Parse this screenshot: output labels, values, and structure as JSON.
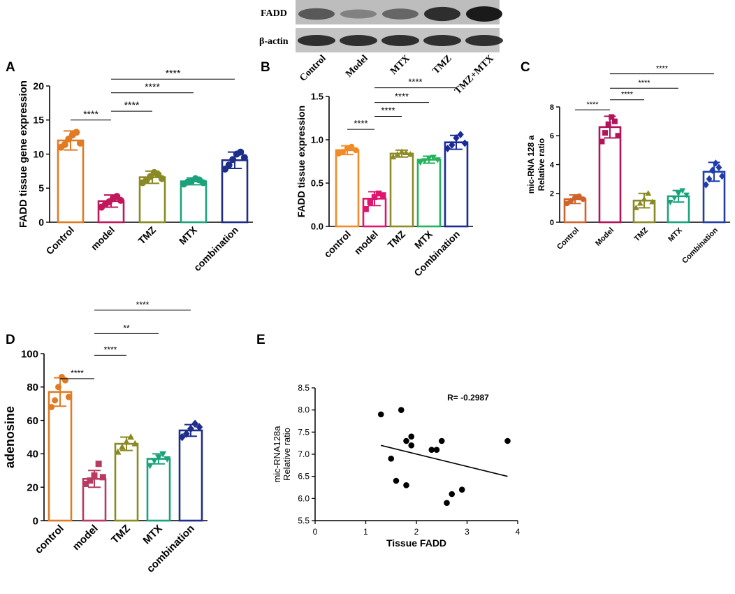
{
  "panel_letters": [
    "A",
    "B",
    "C",
    "D",
    "E"
  ],
  "blot": {
    "rows": [
      "FADD",
      "β-actin"
    ],
    "lanes": [
      "Control",
      "Model",
      "MTX",
      "TMZ",
      "TMZ+MTX"
    ],
    "fadd_intensity": [
      0.55,
      0.25,
      0.45,
      0.85,
      1.0
    ],
    "actin_intensity": [
      0.9,
      0.9,
      0.9,
      0.9,
      0.9
    ]
  },
  "chart_data": [
    {
      "panel": "A",
      "type": "bar",
      "ylabel": "FADD tissue gene expression",
      "xlabel": "",
      "categories": [
        "Control",
        "model",
        "TMZ",
        "MTX",
        "combination"
      ],
      "values": [
        12.0,
        3.1,
        6.6,
        6.0,
        9.1
      ],
      "errors": [
        1.4,
        0.9,
        0.9,
        0.5,
        1.2
      ],
      "points": [
        [
          11.0,
          11.4,
          12.2,
          12.8,
          13.2,
          11.6
        ],
        [
          2.2,
          2.6,
          3.0,
          3.5,
          3.8,
          3.2
        ],
        [
          5.8,
          6.2,
          6.7,
          7.3,
          7.0,
          6.4
        ],
        [
          5.6,
          5.9,
          6.1,
          6.4,
          6.2,
          5.8
        ],
        [
          7.8,
          8.4,
          9.2,
          10.0,
          10.3,
          9.5
        ]
      ],
      "colors": [
        "#e07b24",
        "#c2185b",
        "#8a8a24",
        "#1aa37a",
        "#1f2d8a"
      ],
      "marker": "circle",
      "ylim": [
        0,
        20
      ],
      "yticks": [
        0,
        5,
        10,
        15,
        20
      ],
      "ytick_labels": [
        "0",
        "5",
        "10",
        "15",
        "20"
      ],
      "comparisons": [
        {
          "from": 0,
          "to": 1,
          "y": 15.0,
          "label": "****"
        },
        {
          "from": 1,
          "to": 2,
          "y": 16.3,
          "label": "****"
        },
        {
          "from": 1,
          "to": 3,
          "y": 19.0,
          "label": "****"
        },
        {
          "from": 1,
          "to": 4,
          "y": 21.0,
          "label": "****"
        }
      ]
    },
    {
      "panel": "B",
      "type": "bar",
      "ylabel": "FADD tissue expression",
      "xlabel": "",
      "categories": [
        "control",
        "model",
        "TMZ",
        "MTX",
        "Combination"
      ],
      "values": [
        0.88,
        0.32,
        0.84,
        0.77,
        0.97
      ],
      "errors": [
        0.05,
        0.08,
        0.04,
        0.04,
        0.08
      ],
      "points": [
        [
          0.84,
          0.86,
          0.9,
          0.92,
          0.88
        ],
        [
          0.2,
          0.28,
          0.34,
          0.38,
          0.36
        ],
        [
          0.8,
          0.83,
          0.86,
          0.85,
          0.83
        ],
        [
          0.74,
          0.76,
          0.79,
          0.8,
          0.77
        ],
        [
          0.9,
          0.94,
          1.02,
          1.06,
          0.96
        ]
      ],
      "colors": [
        "#f28a26",
        "#e0156e",
        "#8e8c26",
        "#23b35c",
        "#1a2a96"
      ],
      "marker": "mixed",
      "ylim": [
        0,
        1.5
      ],
      "yticks": [
        0,
        0.5,
        1.0,
        1.5
      ],
      "ytick_labels": [
        "0.0",
        "0.5",
        "1.0",
        "1.5"
      ],
      "comparisons": [
        {
          "from": 0,
          "to": 1,
          "y": 1.12,
          "label": "****"
        },
        {
          "from": 1,
          "to": 2,
          "y": 1.27,
          "label": "****"
        },
        {
          "from": 1,
          "to": 3,
          "y": 1.43,
          "label": "****"
        },
        {
          "from": 1,
          "to": 4,
          "y": 1.6,
          "label": "****"
        }
      ]
    },
    {
      "panel": "C",
      "type": "bar",
      "ylabel": "mic-RNA 128 a Relative ratio",
      "xlabel": "",
      "categories": [
        "Control",
        "Model",
        "TMZ",
        "MTX",
        "Combination"
      ],
      "values": [
        1.6,
        6.6,
        1.5,
        1.8,
        3.5
      ],
      "errors": [
        0.3,
        0.75,
        0.5,
        0.4,
        0.65
      ],
      "points": [
        [
          1.3,
          1.5,
          1.7,
          1.8,
          1.6
        ],
        [
          5.6,
          6.2,
          6.8,
          7.3,
          7.0,
          6.0
        ],
        [
          1.0,
          1.3,
          1.6,
          2.0,
          1.4
        ],
        [
          1.4,
          1.7,
          2.0,
          2.2,
          1.9
        ],
        [
          2.6,
          3.0,
          3.6,
          4.1,
          3.8,
          3.2
        ]
      ],
      "colors": [
        "#d0632a",
        "#b3135a",
        "#8a8a24",
        "#1aa37a",
        "#1f3ca8"
      ],
      "marker": "mixed",
      "ylim": [
        0,
        8
      ],
      "yticks": [
        0,
        2,
        4,
        6,
        8
      ],
      "ytick_labels": [
        "0",
        "2",
        "4",
        "6",
        "8"
      ],
      "comparisons": [
        {
          "from": 0,
          "to": 1,
          "y": 7.8,
          "label": "****"
        },
        {
          "from": 1,
          "to": 2,
          "y": 8.5,
          "label": "****"
        },
        {
          "from": 1,
          "to": 3,
          "y": 9.3,
          "label": "****"
        },
        {
          "from": 1,
          "to": 4,
          "y": 10.3,
          "label": "****"
        }
      ]
    },
    {
      "panel": "D",
      "type": "bar",
      "ylabel": "adenosine",
      "xlabel": "",
      "categories": [
        "control",
        "model",
        "TMZ",
        "MTX",
        "combination"
      ],
      "values": [
        77,
        25,
        46,
        37,
        54
      ],
      "errors": [
        8.5,
        5.0,
        4.0,
        3.0,
        3.5
      ],
      "points": [
        [
          68,
          72,
          80,
          86,
          84,
          74
        ],
        [
          22,
          24,
          27,
          34,
          26
        ],
        [
          41,
          44,
          47,
          50,
          46
        ],
        [
          33,
          36,
          38,
          40,
          37
        ],
        [
          50,
          52,
          55,
          58,
          56
        ]
      ],
      "colors": [
        "#e07b24",
        "#b83a62",
        "#8a8a24",
        "#1aa37a",
        "#1f2d8a"
      ],
      "marker": "mixed",
      "ylim": [
        0,
        100
      ],
      "yticks": [
        0,
        20,
        40,
        60,
        80,
        100
      ],
      "ytick_labels": [
        "0",
        "20",
        "40",
        "60",
        "80",
        "100"
      ],
      "comparisons": [
        {
          "from": 0,
          "to": 1,
          "y": 85,
          "label": "****"
        },
        {
          "from": 1,
          "to": 2,
          "y": 99,
          "label": "****"
        },
        {
          "from": 1,
          "to": 3,
          "y": 112,
          "label": "**"
        },
        {
          "from": 1,
          "to": 4,
          "y": 126,
          "label": "****"
        }
      ]
    },
    {
      "panel": "E",
      "type": "scatter",
      "xlabel": "Tissue FADD",
      "ylabel": "mic-RNA128a Relative ratio",
      "annotation": "R= -0.2987",
      "xlim": [
        0,
        4
      ],
      "ylim": [
        5.5,
        8.5
      ],
      "xticks": [
        0,
        1,
        2,
        3,
        4
      ],
      "xtick_labels": [
        "0",
        "1",
        "2",
        "3",
        "4"
      ],
      "yticks": [
        5.5,
        6.0,
        6.5,
        7.0,
        7.5,
        8.0,
        8.5
      ],
      "ytick_labels": [
        "5.5",
        "6.0",
        "6.5",
        "7.0",
        "7.5",
        "8.0",
        "8.5"
      ],
      "x": [
        1.3,
        1.7,
        1.5,
        1.6,
        1.8,
        1.8,
        1.9,
        1.9,
        2.3,
        2.4,
        2.5,
        2.6,
        2.7,
        2.9,
        3.8
      ],
      "y": [
        7.9,
        8.0,
        6.9,
        6.4,
        6.3,
        7.3,
        7.4,
        7.2,
        7.1,
        7.1,
        7.3,
        5.9,
        6.1,
        6.2,
        7.3
      ],
      "trend": {
        "x": [
          1.3,
          3.8
        ],
        "y": [
          7.2,
          6.5
        ]
      }
    }
  ]
}
